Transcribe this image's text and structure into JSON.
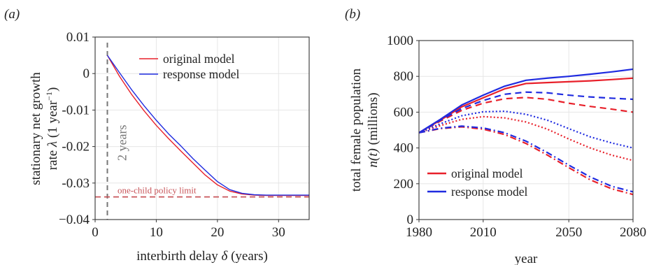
{
  "panels": [
    {
      "label": "(a)",
      "chart_data": {
        "type": "line",
        "xlabel_text": "interbirth delay ",
        "xlabel_symbol": "δ",
        "xlabel_units": " (years)",
        "ylabel_line1": "stationary net growth",
        "ylabel_line2_prefix": "rate ",
        "ylabel_line2_symbol": "λ",
        "ylabel_line2_units": " (1 year",
        "ylabel_line2_exp": "−1",
        "ylabel_line2_close": ")",
        "xlim": [
          0,
          35
        ],
        "ylim": [
          -0.04,
          0.01
        ],
        "x_ticks": [
          {
            "v": 0,
            "label": "0"
          },
          {
            "v": 10,
            "label": "10"
          },
          {
            "v": 20,
            "label": "20"
          },
          {
            "v": 30,
            "label": "30"
          }
        ],
        "y_ticks": [
          {
            "v": 0.01,
            "label": "0.01"
          },
          {
            "v": 0,
            "label": "0"
          },
          {
            "v": -0.01,
            "label": "-0.01"
          },
          {
            "v": -0.02,
            "label": "-0.02"
          },
          {
            "v": -0.03,
            "label": "-0.03"
          },
          {
            "v": -0.04,
            "label": "−0.04"
          }
        ],
        "series": [
          {
            "name": "original model",
            "color": "#e8202a",
            "x": [
              2,
              4,
              6,
              8,
              10,
              12,
              14,
              16,
              18,
              20,
              22,
              24,
              26,
              28,
              30,
              32,
              35
            ],
            "y": [
              0.005,
              -0.0008,
              -0.0058,
              -0.0102,
              -0.0142,
              -0.0178,
              -0.0212,
              -0.0245,
              -0.0278,
              -0.0305,
              -0.0322,
              -0.033,
              -0.0333,
              -0.0334,
              -0.0334,
              -0.0334,
              -0.0334
            ]
          },
          {
            "name": "response model",
            "color": "#1f2be0",
            "x": [
              2,
              4,
              6,
              8,
              10,
              12,
              14,
              16,
              18,
              20,
              22,
              24,
              26,
              28,
              30,
              32,
              35
            ],
            "y": [
              0.005,
              0.0002,
              -0.0045,
              -0.0088,
              -0.0128,
              -0.0165,
              -0.0198,
              -0.0233,
              -0.0265,
              -0.0296,
              -0.0318,
              -0.0328,
              -0.0332,
              -0.0333,
              -0.0333,
              -0.0333,
              -0.0333
            ]
          }
        ],
        "annotations": {
          "vertical_line": {
            "x": 2,
            "label": "2 years",
            "color": "#777777"
          },
          "horizontal_line": {
            "y": -0.0338,
            "label": "one-child policy limit",
            "color": "#c8555a"
          }
        },
        "legend_position": "top-right",
        "grid": true
      }
    },
    {
      "label": "(b)",
      "chart_data": {
        "type": "line",
        "xlabel": "year",
        "ylabel_line1": "total female population",
        "ylabel_line2_symbol": "n(t)",
        "ylabel_line2_units": " (millions)",
        "xlim": [
          1980,
          2080
        ],
        "ylim": [
          0,
          1000
        ],
        "x_ticks": [
          {
            "v": 1980,
            "label": "1980"
          },
          {
            "v": 2010,
            "label": "2010"
          },
          {
            "v": 2050,
            "label": "2050"
          },
          {
            "v": 2080,
            "label": "2080"
          }
        ],
        "y_ticks": [
          {
            "v": 0,
            "label": "0"
          },
          {
            "v": 200,
            "label": "200"
          },
          {
            "v": 400,
            "label": "400"
          },
          {
            "v": 600,
            "label": "600"
          },
          {
            "v": 800,
            "label": "800"
          },
          {
            "v": 1000,
            "label": "1000"
          }
        ],
        "legend": [
          {
            "name": "original model",
            "color": "#e8202a"
          },
          {
            "name": "response model",
            "color": "#1f2be0"
          }
        ],
        "legend_position": "bottom-left",
        "grid": true,
        "series": [
          {
            "color": "#e8202a",
            "style": "solid",
            "x": [
              1980,
              1990,
              2000,
              2010,
              2020,
              2030,
              2040,
              2050,
              2060,
              2070,
              2080
            ],
            "y": [
              485,
              555,
              630,
              680,
              730,
              760,
              765,
              770,
              775,
              782,
              790
            ]
          },
          {
            "color": "#1f2be0",
            "style": "solid",
            "x": [
              1980,
              1990,
              2000,
              2010,
              2020,
              2030,
              2040,
              2050,
              2060,
              2070,
              2080
            ],
            "y": [
              485,
              560,
              640,
              695,
              745,
              778,
              790,
              800,
              812,
              825,
              840
            ]
          },
          {
            "color": "#e8202a",
            "style": "dashed",
            "x": [
              1980,
              1990,
              2000,
              2010,
              2020,
              2030,
              2040,
              2050,
              2060,
              2070,
              2080
            ],
            "y": [
              485,
              550,
              610,
              650,
              675,
              682,
              672,
              650,
              632,
              617,
              600
            ]
          },
          {
            "color": "#1f2be0",
            "style": "dashed",
            "x": [
              1980,
              1990,
              2000,
              2010,
              2020,
              2030,
              2040,
              2050,
              2060,
              2070,
              2080
            ],
            "y": [
              485,
              555,
              620,
              665,
              700,
              712,
              708,
              695,
              685,
              678,
              672
            ]
          },
          {
            "color": "#e8202a",
            "style": "dotted",
            "x": [
              1980,
              1990,
              2000,
              2010,
              2020,
              2030,
              2040,
              2050,
              2060,
              2070,
              2080
            ],
            "y": [
              485,
              525,
              560,
              575,
              568,
              545,
              505,
              450,
              400,
              360,
              330
            ]
          },
          {
            "color": "#1f2be0",
            "style": "dotted",
            "x": [
              1980,
              1990,
              2000,
              2010,
              2020,
              2030,
              2040,
              2050,
              2060,
              2070,
              2080
            ],
            "y": [
              485,
              535,
              580,
              602,
              605,
              588,
              555,
              508,
              462,
              428,
              400
            ]
          },
          {
            "color": "#e8202a",
            "style": "dashdot",
            "x": [
              1980,
              1990,
              2000,
              2010,
              2020,
              2030,
              2040,
              2050,
              2060,
              2070,
              2080
            ],
            "y": [
              485,
              508,
              518,
              505,
              475,
              425,
              360,
              290,
              222,
              172,
              140
            ]
          },
          {
            "color": "#1f2be0",
            "style": "dashdot",
            "x": [
              1980,
              1990,
              2000,
              2010,
              2020,
              2030,
              2040,
              2050,
              2060,
              2070,
              2080
            ],
            "y": [
              485,
              510,
              522,
              512,
              485,
              438,
              374,
              304,
              238,
              186,
              155
            ]
          }
        ]
      }
    }
  ]
}
